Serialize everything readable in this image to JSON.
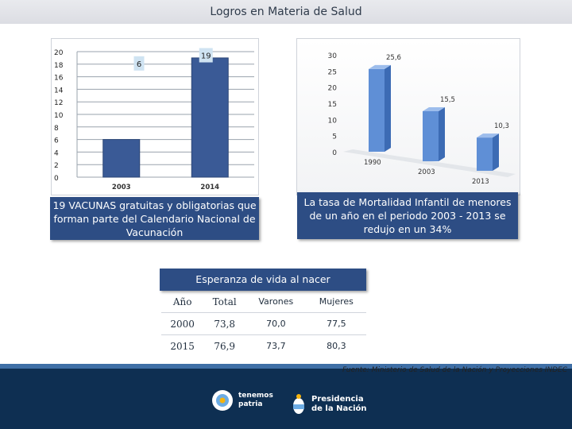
{
  "title": "Logros en Materia de Salud",
  "chart_data": [
    {
      "type": "bar",
      "categories": [
        "2003",
        "2014"
      ],
      "values": [
        6,
        19
      ],
      "data_labels": [
        "6",
        "19"
      ],
      "ylim": [
        0,
        20
      ],
      "yticks": [
        "0",
        "2",
        "4",
        "6",
        "8",
        "10",
        "12",
        "14",
        "16",
        "18",
        "20"
      ],
      "grid": true,
      "color": "#3a5a96"
    },
    {
      "type": "bar",
      "categories": [
        "1990",
        "2003",
        "2013"
      ],
      "values": [
        25.6,
        15.5,
        10.3
      ],
      "data_labels": [
        "25,6",
        "15,5",
        "10,3"
      ],
      "ylim": [
        0,
        30
      ],
      "yticks": [
        "0",
        "5",
        "10",
        "15",
        "20",
        "25",
        "30"
      ],
      "grid": false,
      "color": "#5f8fd6"
    }
  ],
  "caption_vacunas": "19 VACUNAS gratuitas y obligatorias que forman parte del Calendario Nacional de Vacunación",
  "caption_mortalidad": "La tasa de Mortalidad Infantil de menores de un año en el periodo 2003 - 2013 se redujo en un 34%",
  "life_expectancy": {
    "title": "Esperanza de vida al nacer",
    "headers": [
      "Año",
      "Total",
      "Varones",
      "Mujeres"
    ],
    "rows": [
      [
        "2000",
        "73,8",
        "70,0",
        "77,5"
      ],
      [
        "2015",
        "76,9",
        "73,7",
        "80,3"
      ]
    ]
  },
  "source": "Fuente: Ministerio de Salud de la Nación y Proyecciones INDEC",
  "footer": {
    "logo1_line1": "tenemos",
    "logo1_line2": "patria",
    "logo2_line1": "Presidencia",
    "logo2_line2": "de la Nación"
  }
}
